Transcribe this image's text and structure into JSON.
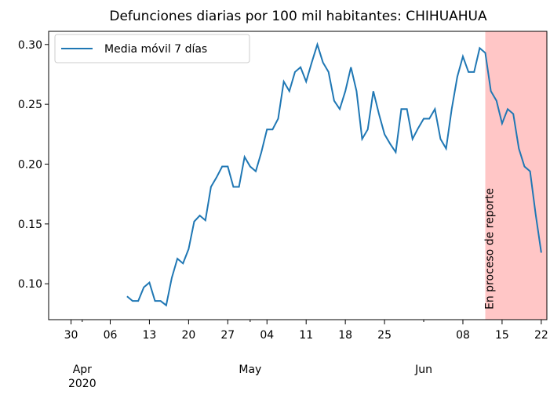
{
  "chart_data": {
    "type": "line",
    "title": "Defunciones diarias por 100 mil habitantes: CHIHUAHUA",
    "x": [
      "2020-04-09",
      "2020-04-10",
      "2020-04-11",
      "2020-04-12",
      "2020-04-13",
      "2020-04-14",
      "2020-04-15",
      "2020-04-16",
      "2020-04-17",
      "2020-04-18",
      "2020-04-19",
      "2020-04-20",
      "2020-04-21",
      "2020-04-22",
      "2020-04-23",
      "2020-04-24",
      "2020-04-25",
      "2020-04-26",
      "2020-04-27",
      "2020-04-28",
      "2020-04-29",
      "2020-04-30",
      "2020-05-01",
      "2020-05-02",
      "2020-05-03",
      "2020-05-04",
      "2020-05-05",
      "2020-05-06",
      "2020-05-07",
      "2020-05-08",
      "2020-05-09",
      "2020-05-10",
      "2020-05-11",
      "2020-05-12",
      "2020-05-13",
      "2020-05-14",
      "2020-05-15",
      "2020-05-16",
      "2020-05-17",
      "2020-05-18",
      "2020-05-19",
      "2020-05-20",
      "2020-05-21",
      "2020-05-22",
      "2020-05-23",
      "2020-05-24",
      "2020-05-25",
      "2020-05-26",
      "2020-05-27",
      "2020-05-28",
      "2020-05-29",
      "2020-05-30",
      "2020-05-31",
      "2020-06-01",
      "2020-06-02",
      "2020-06-03",
      "2020-06-04",
      "2020-06-05",
      "2020-06-06",
      "2020-06-07",
      "2020-06-08",
      "2020-06-09",
      "2020-06-10",
      "2020-06-11",
      "2020-06-12",
      "2020-06-13",
      "2020-06-14",
      "2020-06-15",
      "2020-06-16",
      "2020-06-17",
      "2020-06-18",
      "2020-06-19",
      "2020-06-20",
      "2020-06-21",
      "2020-06-22"
    ],
    "series": [
      {
        "name": "Media móvil 7 días",
        "color": "#1f77b4",
        "values": [
          0.0895,
          0.0856,
          0.0856,
          0.097,
          0.101,
          0.0856,
          0.0856,
          0.082,
          0.105,
          0.121,
          0.117,
          0.129,
          0.152,
          0.157,
          0.153,
          0.181,
          0.189,
          0.198,
          0.198,
          0.181,
          0.181,
          0.206,
          0.198,
          0.194,
          0.21,
          0.229,
          0.229,
          0.238,
          0.269,
          0.261,
          0.277,
          0.281,
          0.269,
          0.285,
          0.3,
          0.285,
          0.277,
          0.253,
          0.246,
          0.261,
          0.281,
          0.261,
          0.221,
          0.229,
          0.261,
          0.242,
          0.225,
          0.217,
          0.21,
          0.246,
          0.246,
          0.221,
          0.23,
          0.238,
          0.238,
          0.246,
          0.221,
          0.213,
          0.246,
          0.273,
          0.29,
          0.277,
          0.277,
          0.297,
          0.293,
          0.261,
          0.253,
          0.234,
          0.246,
          0.242,
          0.213,
          0.198,
          0.194,
          0.158,
          0.126
        ]
      }
    ],
    "xlim": [
      "2020-03-26",
      "2020-06-23"
    ],
    "ylim": [
      0.07,
      0.311
    ],
    "yticks": [
      {
        "value": 0.1,
        "label": "0.10"
      },
      0.15,
      {
        "value": 0.2,
        "label": "0.20"
      },
      0.25,
      {
        "value": 0.3,
        "label": "0.30"
      }
    ],
    "xticks": [
      {
        "value": "2020-03-30",
        "label": "30"
      },
      {
        "value": "2020-04-06",
        "label": "06"
      },
      {
        "value": "2020-04-13",
        "label": "13"
      },
      {
        "value": "2020-04-20",
        "label": "20"
      },
      {
        "value": "2020-04-27",
        "label": "27"
      },
      {
        "value": "2020-05-04",
        "label": "04"
      },
      {
        "value": "2020-05-11",
        "label": "11"
      },
      {
        "value": "2020-05-18",
        "label": "18"
      },
      {
        "value": "2020-05-25",
        "label": "25"
      },
      {
        "value": "2020-06-08",
        "label": "08"
      },
      {
        "value": "2020-06-15",
        "label": "15"
      },
      {
        "value": "2020-06-22",
        "label": "22"
      }
    ],
    "month_ticks": [
      {
        "value": "2020-04-01",
        "label": "Apr"
      },
      {
        "value": "2020-05-01",
        "label": "May"
      },
      {
        "value": "2020-06-01",
        "label": "Jun"
      }
    ],
    "year_tick": {
      "value": "2020-04-01",
      "label": "2020"
    },
    "shade": {
      "start": "2020-06-12",
      "color": "#ffc6c6",
      "label": "En proceso de reporte"
    },
    "legend": "upper left"
  }
}
